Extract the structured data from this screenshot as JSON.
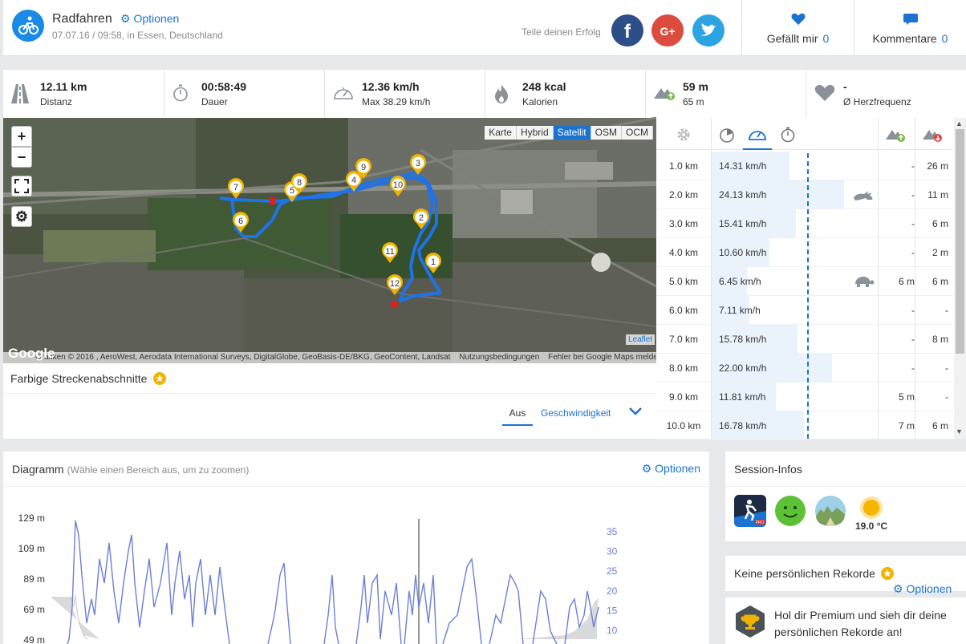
{
  "header": {
    "title": "Radfahren",
    "options": "Optionen",
    "subtitle": "07.07.16 / 09:58, in Essen, Deutschland",
    "share_label": "Teile deinen Erfolg",
    "likes_label": "Gefällt mir",
    "likes_count": "0",
    "comments_label": "Kommentare",
    "comments_count": "0"
  },
  "stats": [
    {
      "value": "12.11 km",
      "label": "Distanz",
      "icon": "road-icon"
    },
    {
      "value": "00:58:49",
      "label": "Dauer",
      "icon": "stopwatch-icon"
    },
    {
      "value": "12.36 km/h",
      "label": "Max 38.29 km/h",
      "icon": "speedometer-icon"
    },
    {
      "value": "248 kcal",
      "label": "Kalorien",
      "icon": "flame-icon"
    },
    {
      "value": "59 m",
      "label": "65 m",
      "icon": "elevation-icon"
    },
    {
      "value": "-",
      "label": "Ø Herzfrequenz",
      "icon": "heart-icon"
    }
  ],
  "map": {
    "types": [
      "Karte",
      "Hybrid",
      "Satellit",
      "OSM",
      "OCM"
    ],
    "active_type": "Satellit",
    "attribution": [
      "Grafiken © 2016 , AeroWest, Aerodata International Surveys, DigitalGlobe, GeoBasis-DE/BKG, GeoContent, Landsat",
      "Nutzungsbedingungen",
      "Fehler bei Google Maps melden"
    ],
    "leaflet": "Leaflet",
    "google": "Google",
    "markers": [
      "1",
      "2",
      "3",
      "4",
      "5",
      "6",
      "7",
      "8",
      "9",
      "10",
      "11",
      "12"
    ]
  },
  "segments": {
    "title": "Farbige Streckenabschnitte",
    "off": "Aus",
    "speed": "Geschwindigkeit"
  },
  "splits": [
    {
      "km": "1.0 km",
      "speed": "14.31 km/h",
      "speed_frac": 0.59,
      "up": "-",
      "down": "26 m",
      "badge": ""
    },
    {
      "km": "2.0 km",
      "speed": "24.13 km/h",
      "speed_frac": 1.0,
      "up": "-",
      "down": "11 m",
      "badge": "hare"
    },
    {
      "km": "3.0 km",
      "speed": "15.41 km/h",
      "speed_frac": 0.64,
      "up": "-",
      "down": "6 m",
      "badge": ""
    },
    {
      "km": "4.0 km",
      "speed": "10.60 km/h",
      "speed_frac": 0.44,
      "up": "-",
      "down": "2 m",
      "badge": ""
    },
    {
      "km": "5.0 km",
      "speed": "6.45 km/h",
      "speed_frac": 0.27,
      "up": "6 m",
      "down": "6 m",
      "badge": "turtle"
    },
    {
      "km": "6.0 km",
      "speed": "7.11 km/h",
      "speed_frac": 0.29,
      "up": "-",
      "down": "-",
      "badge": ""
    },
    {
      "km": "7.0 km",
      "speed": "15.78 km/h",
      "speed_frac": 0.65,
      "up": "-",
      "down": "8 m",
      "badge": ""
    },
    {
      "km": "8.0 km",
      "speed": "22.00 km/h",
      "speed_frac": 0.91,
      "up": "-",
      "down": "-",
      "badge": ""
    },
    {
      "km": "9.0 km",
      "speed": "11.81 km/h",
      "speed_frac": 0.49,
      "up": "5 m",
      "down": "-",
      "badge": ""
    },
    {
      "km": "10.0 km",
      "speed": "16.78 km/h",
      "speed_frac": 0.7,
      "up": "7 m",
      "down": "6 m",
      "badge": ""
    }
  ],
  "diagram": {
    "title": "Diagramm",
    "hint": "(Wähle einen Bereich aus, um zu zoomen)",
    "options": "Optionen",
    "y_left": [
      "129 m",
      "109 m",
      "89 m",
      "69 m",
      "49 m"
    ],
    "y_right": [
      "35",
      "30",
      "25",
      "20",
      "15",
      "10"
    ]
  },
  "session": {
    "title": "Session-Infos",
    "temperature": "19.0 °C"
  },
  "records": {
    "title": "Keine persönlichen Rekorde",
    "options": "Optionen"
  },
  "premium": {
    "text": "Hol dir Premium und sieh dir deine persönlichen Rekorde an!"
  },
  "colors": {
    "accent": "#1a73d0",
    "route": "#1f73e8",
    "marker": "#f0b400",
    "facebook": "#2d4f87",
    "google_plus": "#dc4c3e",
    "twitter": "#2ca4e3"
  }
}
